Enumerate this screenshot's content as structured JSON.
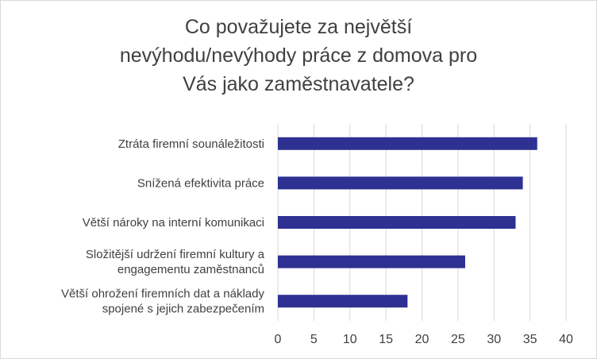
{
  "chart_data": {
    "type": "bar",
    "orientation": "horizontal",
    "title": "Co považujete za největší nevýhodu/nevýhody práce z domova pro Vás jako zaměstnavatele?",
    "title_lines": [
      "Co považujete za největší",
      "nevýhodu/nevýhody práce z domova pro",
      "Vás jako zaměstnavatele?"
    ],
    "categories": [
      [
        "Ztráta firemní sounáležitosti"
      ],
      [
        "Snížená efektivita práce"
      ],
      [
        "Větší nároky na interní komunikaci"
      ],
      [
        "Složitější udržení firemní kultury a",
        "engagementu zaměstnanců"
      ],
      [
        "Větší ohrožení firemních dat a náklady",
        "spojené s jejich zabezpečením"
      ]
    ],
    "values": [
      36,
      34,
      33,
      26,
      18
    ],
    "xlim": [
      0,
      40
    ],
    "xticks": [
      0,
      5,
      10,
      15,
      20,
      25,
      30,
      35,
      40
    ],
    "xlabel": "",
    "ylabel": "",
    "grid": "vertical",
    "legend": "none",
    "colors": {
      "bar": "#2e3192",
      "grid": "#d9d9d9",
      "text": "#404040"
    }
  }
}
